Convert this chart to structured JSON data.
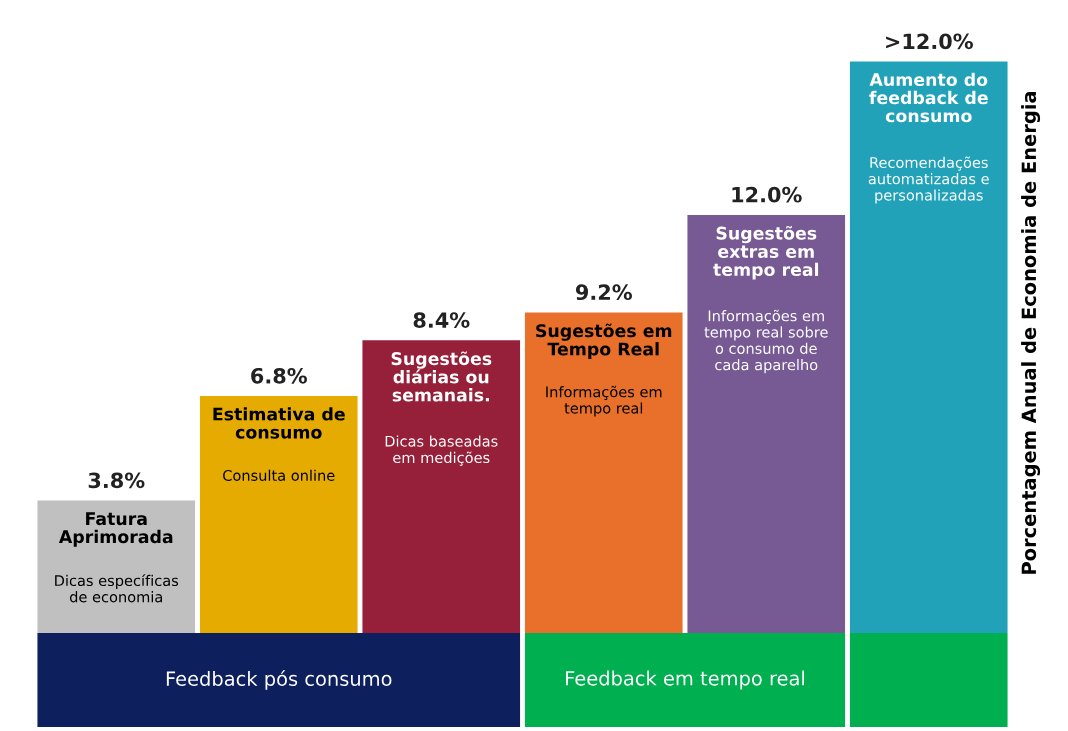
{
  "chart_data": {
    "type": "bar",
    "categories": [
      "Fatura\nAprimorada",
      "Estimativa de\nconsumo",
      "Sugestões\ndiárias ou\nsemanais.",
      "Sugestões em\nTempo Real",
      "Sugestões\nextras em\ntempo real",
      "Aumento do\nfeedback de\nconsumo"
    ],
    "values": [
      3.8,
      6.8,
      8.4,
      9.2,
      12.0,
      16.4
    ],
    "value_labels": [
      "3.8%",
      "6.8%",
      "8.4%",
      "9.2%",
      "12.0%",
      ">12.0%"
    ],
    "colors": [
      "#c0c0c0",
      "#e5ab00",
      "#96203a",
      "#e8702a",
      "#775a93",
      "#21a2b8"
    ],
    "ylabel": "Porcentagem Anual de Economia de Energia",
    "tick_labels": false,
    "annotations": [
      "Dicas específicas\nde economia",
      "Consulta online",
      "Dicas baseadas\nem medições",
      "Informações em\ntempo real",
      "Informações em\ntempo real sobre\no consumo de\ncada aparelho",
      "Recomendações\nautomatizadas e\npersonalizadas",
      "Feedback pós consumo",
      "Feedback em tempo real"
    ]
  }
}
